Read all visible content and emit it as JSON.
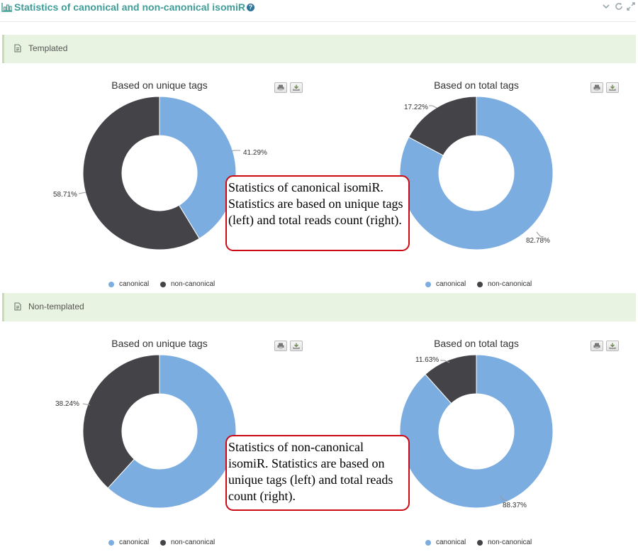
{
  "header": {
    "title": "Statistics of canonical and non-canonical isomiR",
    "icons": [
      "bar-chart-icon",
      "help-icon",
      "chevron-down-icon",
      "refresh-icon",
      "expand-icon"
    ],
    "help_glyph": "?"
  },
  "colors": {
    "title": "#3f9d98",
    "canonical": "#7cade0",
    "non_canonical": "#434348",
    "section_bg": "#e9f3e1",
    "callout_border": "#cc0a14"
  },
  "sections": [
    {
      "label": "Templated",
      "callout": "Statistics of canonical isomiR. Statistics are based on unique tags (left) and total reads count (right).",
      "charts": [
        {
          "title": "Based on unique tags",
          "labels": [
            "41.29%",
            "58.71%"
          ]
        },
        {
          "title": "Based on total tags",
          "labels": [
            "82.78%",
            "17.22%"
          ]
        }
      ]
    },
    {
      "label": "Non-templated",
      "callout": "Statistics of non-canonical isomiR. Statistics are based on unique tags (left) and total reads count (right).",
      "charts": [
        {
          "title": "Based on unique tags",
          "labels": [
            "61.76%",
            "38.24%"
          ]
        },
        {
          "title": "Based on total tags",
          "labels": [
            "88.37%",
            "11.63%"
          ]
        }
      ]
    }
  ],
  "legend": [
    "canonical",
    "non-canonical"
  ],
  "chart_data": [
    {
      "type": "pie",
      "title": "Based on unique tags",
      "categories": [
        "canonical",
        "non-canonical"
      ],
      "values": [
        41.29,
        58.71
      ],
      "unit": "%",
      "legend": "bottom"
    },
    {
      "type": "pie",
      "title": "Based on total tags",
      "categories": [
        "canonical",
        "non-canonical"
      ],
      "values": [
        82.78,
        17.22
      ],
      "unit": "%",
      "legend": "bottom"
    },
    {
      "type": "pie",
      "title": "Based on unique tags",
      "categories": [
        "canonical",
        "non-canonical"
      ],
      "values": [
        61.76,
        38.24
      ],
      "unit": "%",
      "legend": "bottom"
    },
    {
      "type": "pie",
      "title": "Based on total tags",
      "categories": [
        "canonical",
        "non-canonical"
      ],
      "values": [
        88.37,
        11.63
      ],
      "unit": "%",
      "legend": "bottom"
    }
  ]
}
